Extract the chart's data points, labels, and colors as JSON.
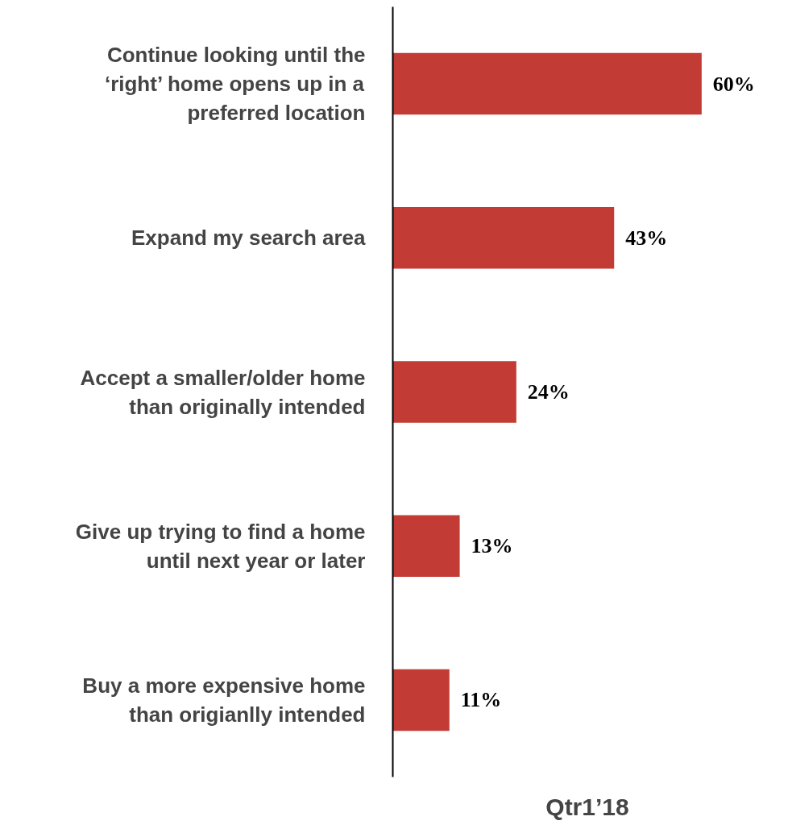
{
  "chart_data": {
    "type": "bar",
    "orientation": "horizontal",
    "xlabel": "Qtr1’18",
    "categories": [
      "Continue looking until the\n‘right’ home opens up in a\npreferred location",
      "Expand my search area",
      "Accept a smaller/older home\nthan originally intended",
      "Give up trying to find a home\nuntil next year or later",
      "Buy a more expensive home\nthan origianlly intended"
    ],
    "values": [
      60,
      43,
      24,
      13,
      11
    ],
    "value_labels": [
      "60%",
      "43%",
      "24%",
      "13%",
      "11%"
    ],
    "color": "#c33b35",
    "grid": false,
    "tick_labels": "y"
  }
}
